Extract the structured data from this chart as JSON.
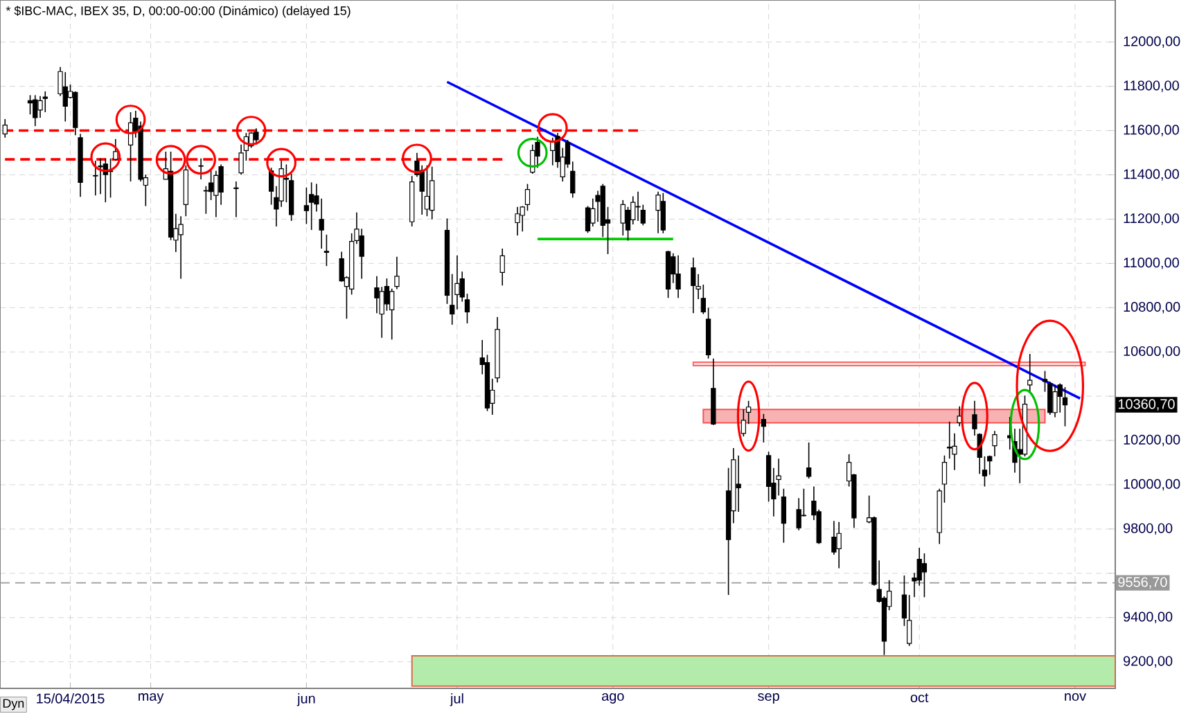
{
  "chart_data": {
    "type": "candlestick",
    "title": "* $IBC-MAC, IBEX 35, D, 00:00-00:00 (Dinámico) (delayed 15)",
    "x": [
      "2015-04-02",
      "2015-04-07",
      "2015-04-08",
      "2015-04-09",
      "2015-04-10",
      "2015-04-13",
      "2015-04-14",
      "2015-04-15",
      "2015-04-16",
      "2015-04-17",
      "2015-04-20",
      "2015-04-21",
      "2015-04-22",
      "2015-04-23",
      "2015-04-24",
      "2015-04-27",
      "2015-04-28",
      "2015-04-29",
      "2015-04-30",
      "2015-05-04",
      "2015-05-05",
      "2015-05-06",
      "2015-05-07",
      "2015-05-08",
      "2015-05-11",
      "2015-05-12",
      "2015-05-13",
      "2015-05-14",
      "2015-05-15",
      "2015-05-18",
      "2015-05-19",
      "2015-05-20",
      "2015-05-21",
      "2015-05-22",
      "2015-05-25",
      "2015-05-26",
      "2015-05-27",
      "2015-05-28",
      "2015-05-29",
      "2015-06-01",
      "2015-06-02",
      "2015-06-03",
      "2015-06-04",
      "2015-06-05",
      "2015-06-08",
      "2015-06-09",
      "2015-06-10",
      "2015-06-11",
      "2015-06-12",
      "2015-06-15",
      "2015-06-16",
      "2015-06-17",
      "2015-06-18",
      "2015-06-19",
      "2015-06-22",
      "2015-06-23",
      "2015-06-24",
      "2015-06-25",
      "2015-06-26",
      "2015-06-29",
      "2015-06-30",
      "2015-07-01",
      "2015-07-02",
      "2015-07-03",
      "2015-07-06",
      "2015-07-07",
      "2015-07-08",
      "2015-07-09",
      "2015-07-10",
      "2015-07-13",
      "2015-07-14",
      "2015-07-15",
      "2015-07-16",
      "2015-07-17",
      "2015-07-20",
      "2015-07-21",
      "2015-07-22",
      "2015-07-23",
      "2015-07-24",
      "2015-07-27",
      "2015-07-28",
      "2015-07-29",
      "2015-07-30",
      "2015-07-31",
      "2015-08-03",
      "2015-08-04",
      "2015-08-05",
      "2015-08-06",
      "2015-08-07",
      "2015-08-10",
      "2015-08-11",
      "2015-08-12",
      "2015-08-13",
      "2015-08-14",
      "2015-08-17",
      "2015-08-18",
      "2015-08-19",
      "2015-08-20",
      "2015-08-21",
      "2015-08-24",
      "2015-08-25",
      "2015-08-26",
      "2015-08-27",
      "2015-08-28",
      "2015-08-31",
      "2015-09-01",
      "2015-09-02",
      "2015-09-03",
      "2015-09-04",
      "2015-09-07",
      "2015-09-08",
      "2015-09-09",
      "2015-09-10",
      "2015-09-11",
      "2015-09-14",
      "2015-09-15",
      "2015-09-17",
      "2015-09-18",
      "2015-09-21",
      "2015-09-22",
      "2015-09-23",
      "2015-09-24",
      "2015-09-25",
      "2015-09-28",
      "2015-09-29",
      "2015-09-30",
      "2015-10-01",
      "2015-10-02",
      "2015-10-05",
      "2015-10-06",
      "2015-10-07",
      "2015-10-08",
      "2015-10-09",
      "2015-10-12",
      "2015-10-13",
      "2015-10-14",
      "2015-10-15",
      "2015-10-16",
      "2015-10-19",
      "2015-10-20",
      "2015-10-21",
      "2015-10-22",
      "2015-10-23",
      "2015-10-26",
      "2015-10-27",
      "2015-10-28",
      "2015-10-29",
      "2015-10-30"
    ],
    "ohlc": [
      [
        11585,
        11652,
        11568,
        11625
      ],
      [
        11735,
        11760,
        11673,
        11725
      ],
      [
        11739,
        11760,
        11620,
        11658
      ],
      [
        11693,
        11756,
        11658,
        11735
      ],
      [
        11752,
        11777,
        11683,
        11745
      ],
      [
        11766,
        11887,
        11756,
        11867
      ],
      [
        11798,
        11864,
        11641,
        11710
      ],
      [
        11750,
        11808,
        11745,
        11777
      ],
      [
        11773,
        11777,
        11579,
        11614
      ],
      [
        11568,
        11585,
        11301,
        11366
      ],
      [
        11397,
        11464,
        11307,
        11395
      ],
      [
        11440,
        11474,
        11313,
        11436
      ],
      [
        11449,
        11474,
        11276,
        11401
      ],
      [
        11418,
        11474,
        11297,
        11415
      ],
      [
        11470,
        11562,
        11464,
        11505
      ],
      [
        11535,
        11683,
        11370,
        11635
      ],
      [
        11656,
        11689,
        11568,
        11599
      ],
      [
        11620,
        11641,
        11370,
        11380
      ],
      [
        11353,
        11401,
        11259,
        11387
      ],
      [
        11380,
        11505,
        11380,
        11428
      ],
      [
        11416,
        11505,
        11105,
        11119
      ],
      [
        11105,
        11224,
        11051,
        11157
      ],
      [
        11130,
        11213,
        10931,
        11176
      ],
      [
        11266,
        11443,
        11213,
        11422
      ],
      [
        11441,
        11474,
        11380,
        11439
      ],
      [
        11329,
        11349,
        11224,
        11327
      ],
      [
        11364,
        11422,
        11286,
        11324
      ],
      [
        11307,
        11418,
        11209,
        11397
      ],
      [
        11437,
        11447,
        11265,
        11322
      ],
      [
        11341,
        11370,
        11209,
        11338
      ],
      [
        11409,
        11537,
        11401,
        11499
      ],
      [
        11510,
        11589,
        11464,
        11572
      ],
      [
        11531,
        11593,
        11522,
        11589
      ],
      [
        11593,
        11610,
        11537,
        11558
      ],
      [
        11418,
        11432,
        11265,
        11326
      ],
      [
        11297,
        11349,
        11167,
        11245
      ],
      [
        11282,
        11464,
        11255,
        11428
      ],
      [
        11385,
        11447,
        11276,
        11380
      ],
      [
        11374,
        11405,
        11192,
        11220
      ],
      [
        11261,
        11343,
        11178,
        11238
      ],
      [
        11311,
        11366,
        11151,
        11276
      ],
      [
        11305,
        11359,
        11234,
        11268
      ],
      [
        11199,
        11293,
        11067,
        11151
      ],
      [
        11055,
        11130,
        10988,
        11050
      ],
      [
        11021,
        11053,
        10917,
        10921
      ],
      [
        10896,
        10942,
        10750,
        10936
      ],
      [
        10884,
        11136,
        10859,
        11099
      ],
      [
        11103,
        11230,
        11088,
        11155
      ],
      [
        11124,
        11157,
        10931,
        11032
      ],
      [
        10890,
        10942,
        10775,
        10844
      ],
      [
        10771,
        10894,
        10664,
        10873
      ],
      [
        10896,
        10932,
        10786,
        10817
      ],
      [
        10790,
        10886,
        10656,
        10873
      ],
      [
        10896,
        11030,
        10884,
        10942
      ],
      [
        11188,
        11395,
        11167,
        11368
      ],
      [
        11462,
        11499,
        11391,
        11401
      ],
      [
        11420,
        11443,
        11220,
        11326
      ],
      [
        11245,
        11443,
        11213,
        11303
      ],
      [
        11240,
        11437,
        11199,
        11374
      ],
      [
        11149,
        11203,
        10817,
        10856
      ],
      [
        10811,
        10952,
        10723,
        10771
      ],
      [
        10859,
        11036,
        10792,
        10909
      ],
      [
        10930,
        10963,
        10827,
        10848
      ],
      [
        10836,
        10863,
        10729,
        10781
      ],
      [
        10573,
        10654,
        10499,
        10543
      ],
      [
        10552,
        10587,
        10333,
        10347
      ],
      [
        10368,
        10479,
        10316,
        10427
      ],
      [
        10483,
        10758,
        10462,
        10702
      ],
      [
        10959,
        11067,
        10900,
        11034
      ],
      [
        11184,
        11255,
        11126,
        11224
      ],
      [
        11217,
        11259,
        11144,
        11255
      ],
      [
        11266,
        11359,
        11238,
        11334
      ],
      [
        11412,
        11537,
        11405,
        11510
      ],
      [
        11547,
        11572,
        11432,
        11485
      ],
      [
        11510,
        11568,
        11443,
        11547
      ],
      [
        11574,
        11589,
        11432,
        11460
      ],
      [
        11391,
        11522,
        11370,
        11480
      ],
      [
        11547,
        11558,
        11432,
        11449
      ],
      [
        11416,
        11460,
        11297,
        11318
      ],
      [
        11251,
        11259,
        11138,
        11147
      ],
      [
        11182,
        11293,
        11167,
        11247
      ],
      [
        11307,
        11328,
        11188,
        11280
      ],
      [
        11349,
        11359,
        11119,
        11172
      ],
      [
        11197,
        11255,
        11042,
        11182
      ],
      [
        11182,
        11286,
        11126,
        11266
      ],
      [
        11240,
        11255,
        11103,
        11151
      ],
      [
        11197,
        11303,
        11176,
        11276
      ],
      [
        11257,
        11324,
        11192,
        11255
      ],
      [
        11240,
        11265,
        11172,
        11182
      ],
      [
        11240,
        11324,
        11136,
        11309
      ],
      [
        11280,
        11318,
        11136,
        11151
      ],
      [
        11053,
        11057,
        10844,
        10884
      ],
      [
        11030,
        11046,
        10911,
        10952
      ],
      [
        10952,
        11036,
        10844,
        10884
      ],
      [
        10980,
        11026,
        10775,
        10900
      ],
      [
        10884,
        10952,
        10838,
        10896
      ],
      [
        10842,
        10904,
        10771,
        10781
      ],
      [
        10748,
        10800,
        10570,
        10587
      ],
      [
        10435,
        10570,
        10270,
        10274
      ],
      [
        9972,
        10076,
        9502,
        9752
      ],
      [
        9882,
        10166,
        9826,
        10113
      ],
      [
        10003,
        10132,
        9878,
        9986
      ],
      [
        10232,
        10341,
        10218,
        10291
      ],
      [
        10327,
        10379,
        10274,
        10351
      ],
      [
        10295,
        10320,
        10191,
        10264
      ],
      [
        10132,
        10149,
        9924,
        9992
      ],
      [
        10007,
        10076,
        9857,
        9936
      ],
      [
        10024,
        10118,
        9951,
        10040
      ],
      [
        9945,
        9982,
        9738,
        9826
      ],
      [
        9888,
        9940,
        9794,
        9805
      ],
      [
        9862,
        9982,
        9857,
        9860
      ],
      [
        10076,
        10191,
        10028,
        10038
      ],
      [
        9926,
        9992,
        9840,
        9863
      ],
      [
        9878,
        9888,
        9732,
        9738
      ],
      [
        9763,
        9836,
        9684,
        9696
      ],
      [
        9711,
        9832,
        9623,
        9780
      ],
      [
        10017,
        10138,
        9992,
        10101
      ],
      [
        10045,
        10049,
        9805,
        9850
      ],
      [
        9832,
        9951,
        9826,
        9851
      ],
      [
        9851,
        9857,
        9544,
        9550
      ],
      [
        9527,
        9658,
        9467,
        9473
      ],
      [
        9487,
        9496,
        9231,
        9293
      ],
      [
        9450,
        9569,
        9433,
        9519
      ],
      [
        9502,
        9590,
        9362,
        9398
      ],
      [
        9283,
        9502,
        9272,
        9387
      ],
      [
        9579,
        9602,
        9492,
        9565
      ],
      [
        9663,
        9715,
        9544,
        9569
      ],
      [
        9644,
        9690,
        9492,
        9606
      ],
      [
        9784,
        9982,
        9732,
        9972
      ],
      [
        10003,
        10132,
        9919,
        10101
      ],
      [
        10170,
        10285,
        10118,
        10166
      ],
      [
        10138,
        10232,
        10066,
        10174
      ],
      [
        10280,
        10354,
        10264,
        10310
      ],
      [
        10316,
        10379,
        10222,
        10253
      ],
      [
        10228,
        10232,
        10049,
        10124
      ],
      [
        10066,
        10128,
        9992,
        10040
      ],
      [
        10128,
        10132,
        10045,
        10107
      ],
      [
        10176,
        10243,
        10128,
        10226
      ],
      [
        10222,
        10306,
        10159,
        10212
      ],
      [
        10195,
        10253,
        10055,
        10101
      ],
      [
        10159,
        10253,
        10007,
        10138
      ],
      [
        10138,
        10403,
        10128,
        10364
      ],
      [
        10451,
        10591,
        10420,
        10472
      ],
      [
        10476,
        10514,
        10420,
        10466
      ],
      [
        10458,
        10466,
        10316,
        10326
      ],
      [
        10326,
        10451,
        10305,
        10420
      ],
      [
        10451,
        10458,
        10326,
        10399
      ],
      [
        10393,
        10441,
        10264,
        10361
      ]
    ],
    "series": [
      {
        "type": "line",
        "x": [
          "2015-06-22",
          "2015-11-09"
        ],
        "values": [
          null,
          null
        ],
        "lower": [
          9090,
          9090
        ],
        "upper": [
          9227,
          9227
        ],
        "color": "#b3ecaa"
      },
      {
        "type": "line",
        "x": [
          "2015-08-19",
          "2015-10-26"
        ],
        "values": [
          null,
          null
        ],
        "lower": [
          10280,
          10280
        ],
        "upper": [
          10340,
          10340
        ],
        "color": "#f7b3b3"
      },
      {
        "type": "line",
        "x": [
          "2015-08-17",
          "2015-11-03"
        ],
        "values": [
          null,
          null
        ],
        "lower": [
          10538,
          10538
        ],
        "upper": [
          10554,
          10554
        ],
        "color": "#fbe0e0"
      },
      {
        "type": "line",
        "x": [
          "2015-04-01",
          "2015-08-06"
        ],
        "values": [
          11600,
          11600
        ],
        "color": "#ff0000",
        "line_style": "dashed"
      },
      {
        "type": "line",
        "x": [
          "2015-04-01",
          "2015-07-10"
        ],
        "values": [
          11470,
          11470
        ],
        "color": "#ff0000",
        "line_style": "dashed"
      },
      {
        "type": "line",
        "x": [
          "2015-07-17",
          "2015-08-13"
        ],
        "values": [
          11110,
          11110
        ],
        "color": "#00cc00",
        "line_style": "solid"
      },
      {
        "type": "line",
        "x": [
          "2015-06-29",
          "2015-11-02"
        ],
        "values": [
          11820,
          10390
        ],
        "color": "#0000ff",
        "line_style": "solid"
      }
    ],
    "ref_lines": [
      {
        "axis": "y",
        "value": 9556.7,
        "label": "9556,70",
        "color": "#999999",
        "line_style": "dashed"
      }
    ],
    "annotations": [
      "Dyn",
      "10360,70"
    ],
    "xlim": [
      "2015-04-01",
      "2015-11-09"
    ],
    "ylim": [
      9080,
      12190
    ],
    "xticks": [
      {
        "value": "2015-04-15",
        "label": "15/04/2015"
      },
      {
        "value": "2015-05-01",
        "label": "may"
      },
      {
        "value": "2015-06-01",
        "label": "jun"
      },
      {
        "value": "2015-07-01",
        "label": "jul"
      },
      {
        "value": "2015-08-01",
        "label": "ago"
      },
      {
        "value": "2015-09-01",
        "label": "sep"
      },
      {
        "value": "2015-10-01",
        "label": "oct"
      },
      {
        "value": "2015-11-01",
        "label": "nov"
      }
    ],
    "yticks": [
      {
        "value": 9200,
        "label": "9200,00"
      },
      {
        "value": 9400,
        "label": "9400,00"
      },
      {
        "value": 9600,
        "label": null
      },
      {
        "value": 9800,
        "label": "9800,00"
      },
      {
        "value": 10000,
        "label": "10000,00"
      },
      {
        "value": 10200,
        "label": "10200,00"
      },
      {
        "value": 10400,
        "label": null
      },
      {
        "value": 10600,
        "label": "10600,00"
      },
      {
        "value": 10800,
        "label": "10800,00"
      },
      {
        "value": 11000,
        "label": "11000,00"
      },
      {
        "value": 11200,
        "label": "11200,00"
      },
      {
        "value": 11400,
        "label": "11400,00"
      },
      {
        "value": 11600,
        "label": "11600,00"
      },
      {
        "value": 11800,
        "label": "11800,00"
      },
      {
        "value": 12000,
        "label": "12000,00"
      }
    ],
    "grid": true
  }
}
